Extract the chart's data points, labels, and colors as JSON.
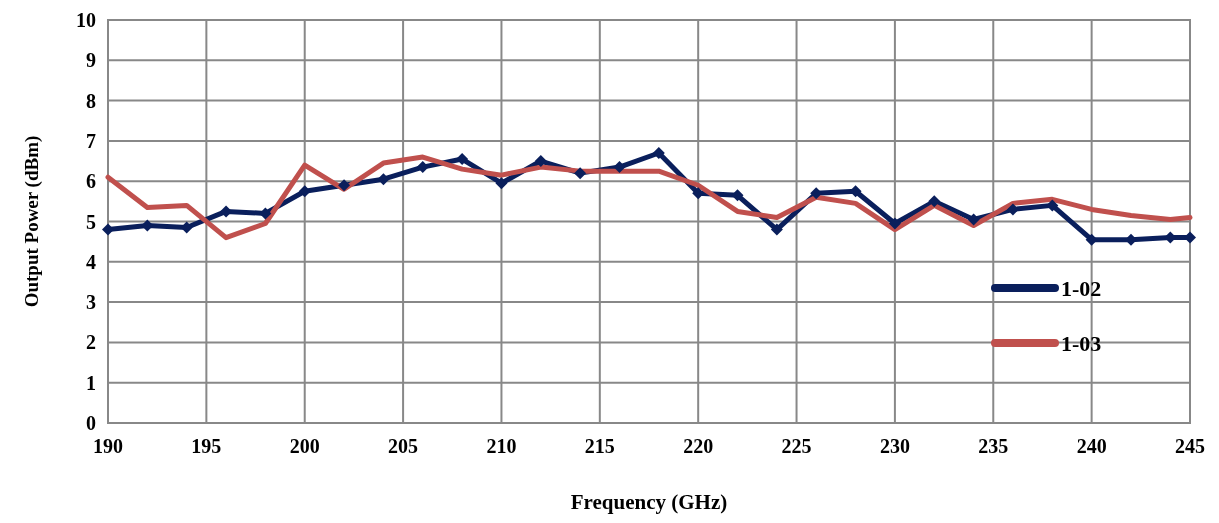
{
  "chart_data": {
    "type": "line",
    "xlabel": "Frequency (GHz)",
    "ylabel": "Output Power (dBm)",
    "x": [
      190,
      192,
      194,
      196,
      198,
      200,
      202,
      204,
      206,
      208,
      210,
      212,
      214,
      216,
      218,
      220,
      222,
      224,
      226,
      228,
      230,
      232,
      234,
      236,
      238,
      240,
      242,
      244,
      245
    ],
    "series": [
      {
        "name": "1-02",
        "color": "#0a1f5c",
        "marker": "diamond",
        "values": [
          4.8,
          4.9,
          4.85,
          5.25,
          5.2,
          5.75,
          5.9,
          6.05,
          6.35,
          6.55,
          5.95,
          6.5,
          6.2,
          6.35,
          6.7,
          5.7,
          5.65,
          4.8,
          5.7,
          5.75,
          4.95,
          5.5,
          5.05,
          5.3,
          5.4,
          4.55,
          4.55,
          4.6,
          4.6
        ]
      },
      {
        "name": "1-03",
        "color": "#c0504d",
        "marker": "none",
        "values": [
          6.1,
          5.35,
          5.4,
          4.6,
          4.95,
          6.4,
          5.8,
          6.45,
          6.6,
          6.3,
          6.15,
          6.35,
          6.25,
          6.25,
          6.25,
          5.9,
          5.25,
          5.1,
          5.6,
          5.45,
          4.8,
          5.4,
          4.9,
          5.45,
          5.55,
          5.3,
          5.15,
          5.05,
          5.1
        ]
      }
    ],
    "xlim": [
      190,
      245
    ],
    "xticks": [
      190,
      195,
      200,
      205,
      210,
      215,
      220,
      225,
      230,
      235,
      240,
      245
    ],
    "ylim": [
      0,
      10
    ],
    "yticks": [
      0,
      1,
      2,
      3,
      4,
      5,
      6,
      7,
      8,
      9,
      10
    ],
    "grid": true,
    "legend": "bottom right",
    "line_style": "solid"
  }
}
